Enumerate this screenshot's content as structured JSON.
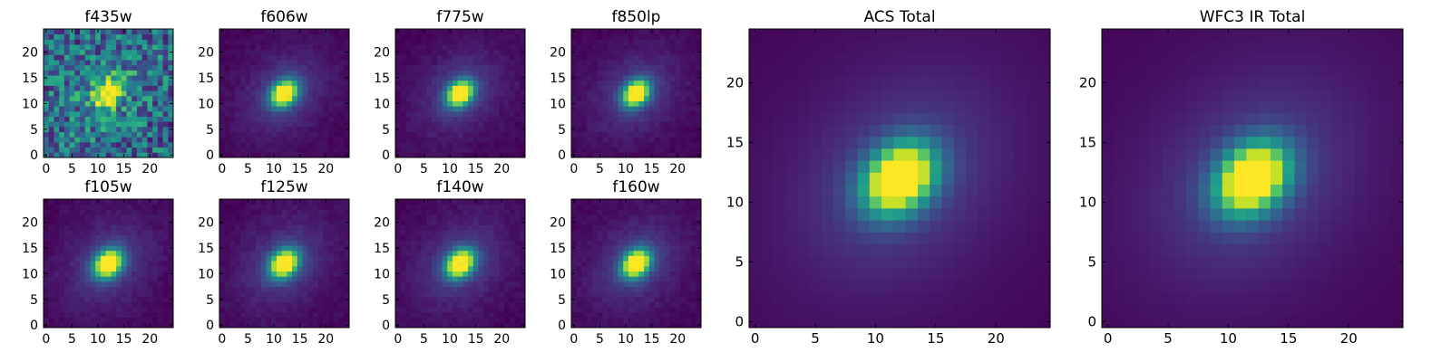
{
  "figure": {
    "colormap": "viridis",
    "colors": [
      "#440154",
      "#3b528b",
      "#21918c",
      "#5ec962",
      "#fde725"
    ]
  },
  "chart_data": [
    {
      "type": "heatmap",
      "title": "f435w",
      "grid_shape": [
        25,
        25
      ],
      "x_ticks": [
        0,
        5,
        10,
        15,
        20
      ],
      "y_ticks": [
        0,
        5,
        10,
        15,
        20
      ],
      "xlim": [
        0,
        24
      ],
      "ylim": [
        0,
        24
      ],
      "peak_xy": [
        12,
        12
      ],
      "noise": "high",
      "colorbar": false
    },
    {
      "type": "heatmap",
      "title": "f606w",
      "grid_shape": [
        25,
        25
      ],
      "x_ticks": [
        0,
        5,
        10,
        15,
        20
      ],
      "y_ticks": [
        0,
        5,
        10,
        15,
        20
      ],
      "xlim": [
        0,
        24
      ],
      "ylim": [
        0,
        24
      ],
      "peak_xy": [
        12,
        12
      ],
      "noise": "low",
      "colorbar": false
    },
    {
      "type": "heatmap",
      "title": "f775w",
      "grid_shape": [
        25,
        25
      ],
      "x_ticks": [
        0,
        5,
        10,
        15,
        20
      ],
      "y_ticks": [
        0,
        5,
        10,
        15,
        20
      ],
      "xlim": [
        0,
        24
      ],
      "ylim": [
        0,
        24
      ],
      "peak_xy": [
        12,
        12
      ],
      "noise": "low",
      "colorbar": false
    },
    {
      "type": "heatmap",
      "title": "f850lp",
      "grid_shape": [
        25,
        25
      ],
      "x_ticks": [
        0,
        5,
        10,
        15,
        20
      ],
      "y_ticks": [
        0,
        5,
        10,
        15,
        20
      ],
      "xlim": [
        0,
        24
      ],
      "ylim": [
        0,
        24
      ],
      "peak_xy": [
        12,
        12
      ],
      "noise": "low",
      "colorbar": false
    },
    {
      "type": "heatmap",
      "title": "f105w",
      "grid_shape": [
        25,
        25
      ],
      "x_ticks": [
        0,
        5,
        10,
        15,
        20
      ],
      "y_ticks": [
        0,
        5,
        10,
        15,
        20
      ],
      "xlim": [
        0,
        24
      ],
      "ylim": [
        0,
        24
      ],
      "peak_xy": [
        12,
        12
      ],
      "noise": "low",
      "colorbar": false
    },
    {
      "type": "heatmap",
      "title": "f125w",
      "grid_shape": [
        25,
        25
      ],
      "x_ticks": [
        0,
        5,
        10,
        15,
        20
      ],
      "y_ticks": [
        0,
        5,
        10,
        15,
        20
      ],
      "xlim": [
        0,
        24
      ],
      "ylim": [
        0,
        24
      ],
      "peak_xy": [
        12,
        12
      ],
      "noise": "low",
      "colorbar": false
    },
    {
      "type": "heatmap",
      "title": "f140w",
      "grid_shape": [
        25,
        25
      ],
      "x_ticks": [
        0,
        5,
        10,
        15,
        20
      ],
      "y_ticks": [
        0,
        5,
        10,
        15,
        20
      ],
      "xlim": [
        0,
        24
      ],
      "ylim": [
        0,
        24
      ],
      "peak_xy": [
        12,
        12
      ],
      "noise": "low",
      "colorbar": false
    },
    {
      "type": "heatmap",
      "title": "f160w",
      "grid_shape": [
        25,
        25
      ],
      "x_ticks": [
        0,
        5,
        10,
        15,
        20
      ],
      "y_ticks": [
        0,
        5,
        10,
        15,
        20
      ],
      "xlim": [
        0,
        24
      ],
      "ylim": [
        0,
        24
      ],
      "peak_xy": [
        12,
        12
      ],
      "noise": "low",
      "colorbar": false
    },
    {
      "type": "heatmap",
      "title": "ACS Total",
      "grid_shape": [
        25,
        25
      ],
      "x_ticks": [
        0,
        5,
        10,
        15,
        20
      ],
      "y_ticks": [
        0,
        5,
        10,
        15,
        20
      ],
      "xlim": [
        0,
        24
      ],
      "ylim": [
        0,
        24
      ],
      "peak_xy": [
        12,
        12
      ],
      "noise": "none",
      "colorbar": false
    },
    {
      "type": "heatmap",
      "title": "WFC3 IR Total",
      "grid_shape": [
        25,
        25
      ],
      "x_ticks": [
        0,
        5,
        10,
        15,
        20
      ],
      "y_ticks": [
        0,
        5,
        10,
        15,
        20
      ],
      "xlim": [
        0,
        24
      ],
      "ylim": [
        0,
        24
      ],
      "peak_xy": [
        12,
        12
      ],
      "noise": "none",
      "colorbar": false
    }
  ]
}
